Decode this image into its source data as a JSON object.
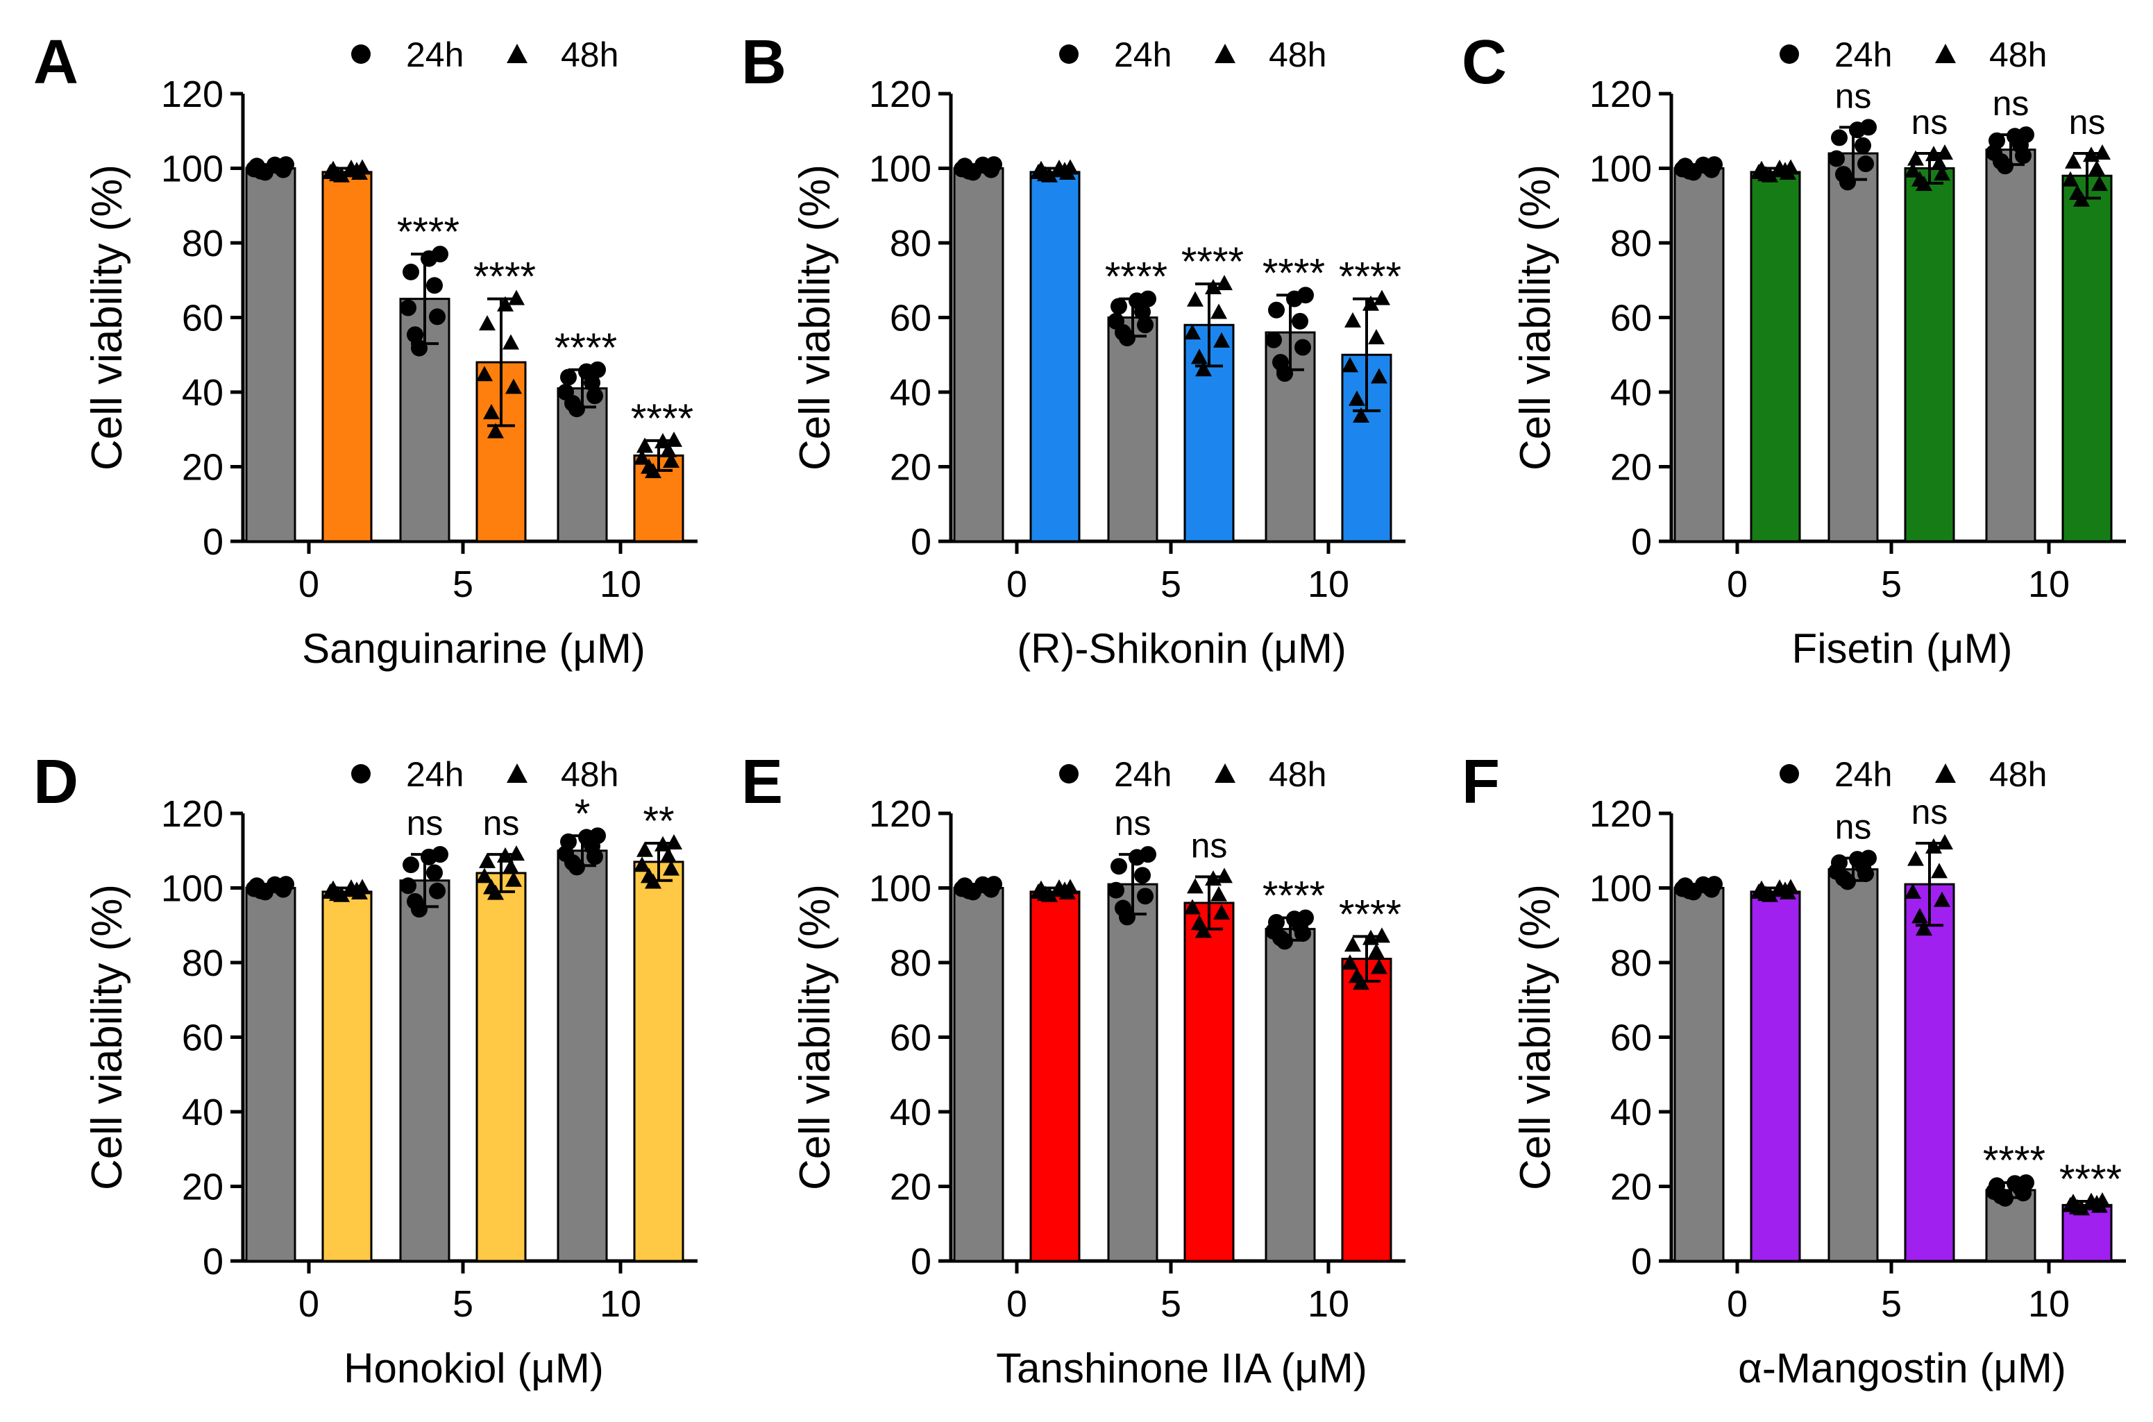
{
  "legend": {
    "series": [
      {
        "label": "24h",
        "marker": "circle"
      },
      {
        "label": "48h",
        "marker": "triangle"
      }
    ]
  },
  "colors": {
    "ctrl": "#808080",
    "sanguinarine": "#FF7F0E",
    "shikonin": "#1C86EE",
    "fisetin": "#167D16",
    "honokiol": "#FFC845",
    "tanshinone": "#FF0000",
    "mangostin": "#A020F0"
  },
  "chart_data": [
    {
      "panel": "A",
      "type": "bar",
      "color_key": "sanguinarine",
      "categories": [
        "0",
        "5",
        "10"
      ],
      "xlabel": "Sanguinarine (μM)",
      "ylabel": "Cell viability (%)",
      "ylim": [
        0,
        120
      ],
      "yticks": [
        "0",
        "20",
        "40",
        "60",
        "80",
        "100",
        "120"
      ],
      "series": [
        {
          "name": "24h",
          "values": [
            100,
            65,
            41
          ],
          "errors": [
            1,
            12,
            5
          ],
          "sig": [
            "",
            "****",
            "****"
          ]
        },
        {
          "name": "48h",
          "values": [
            99,
            48,
            23
          ],
          "errors": [
            1,
            17,
            4
          ],
          "sig": [
            "",
            "****",
            "****"
          ]
        }
      ]
    },
    {
      "panel": "B",
      "type": "bar",
      "color_key": "shikonin",
      "categories": [
        "0",
        "5",
        "10"
      ],
      "xlabel": "(R)-Shikonin (μM)",
      "ylabel": "Cell viability (%)",
      "ylim": [
        0,
        120
      ],
      "yticks": [
        "0",
        "20",
        "40",
        "60",
        "80",
        "100",
        "120"
      ],
      "series": [
        {
          "name": "24h",
          "values": [
            100,
            60,
            56
          ],
          "errors": [
            1,
            5,
            10
          ],
          "sig": [
            "",
            "****",
            "****"
          ]
        },
        {
          "name": "48h",
          "values": [
            99,
            58,
            50
          ],
          "errors": [
            1,
            11,
            15
          ],
          "sig": [
            "",
            "****",
            "****"
          ]
        }
      ]
    },
    {
      "panel": "C",
      "type": "bar",
      "color_key": "fisetin",
      "categories": [
        "0",
        "5",
        "10"
      ],
      "xlabel": "Fisetin (μM)",
      "ylabel": "Cell viability (%)",
      "ylim": [
        0,
        120
      ],
      "yticks": [
        "0",
        "20",
        "40",
        "60",
        "80",
        "100",
        "120"
      ],
      "series": [
        {
          "name": "24h",
          "values": [
            100,
            104,
            105
          ],
          "errors": [
            1,
            7,
            4
          ],
          "sig": [
            "",
            "ns",
            "ns"
          ]
        },
        {
          "name": "48h",
          "values": [
            99,
            100,
            98
          ],
          "errors": [
            1,
            4,
            6
          ],
          "sig": [
            "",
            "ns",
            "ns"
          ]
        }
      ]
    },
    {
      "panel": "D",
      "type": "bar",
      "color_key": "honokiol",
      "categories": [
        "0",
        "5",
        "10"
      ],
      "xlabel": "Honokiol (μM)",
      "ylabel": "Cell viability (%)",
      "ylim": [
        0,
        120
      ],
      "yticks": [
        "0",
        "20",
        "40",
        "60",
        "80",
        "100",
        "120"
      ],
      "series": [
        {
          "name": "24h",
          "values": [
            100,
            102,
            110
          ],
          "errors": [
            1,
            7,
            4
          ],
          "sig": [
            "",
            "ns",
            "*"
          ]
        },
        {
          "name": "48h",
          "values": [
            99,
            104,
            107
          ],
          "errors": [
            1,
            5,
            5
          ],
          "sig": [
            "",
            "ns",
            "**"
          ]
        }
      ]
    },
    {
      "panel": "E",
      "type": "bar",
      "color_key": "tanshinone",
      "categories": [
        "0",
        "5",
        "10"
      ],
      "xlabel": "Tanshinone IIA (μM)",
      "ylabel": "Cell viability (%)",
      "ylim": [
        0,
        120
      ],
      "yticks": [
        "0",
        "20",
        "40",
        "60",
        "80",
        "100",
        "120"
      ],
      "series": [
        {
          "name": "24h",
          "values": [
            100,
            101,
            89
          ],
          "errors": [
            1,
            8,
            3
          ],
          "sig": [
            "",
            "ns",
            "****"
          ]
        },
        {
          "name": "48h",
          "values": [
            99,
            96,
            81
          ],
          "errors": [
            1,
            7,
            6
          ],
          "sig": [
            "",
            "ns",
            "****"
          ]
        }
      ]
    },
    {
      "panel": "F",
      "type": "bar",
      "color_key": "mangostin",
      "categories": [
        "0",
        "5",
        "10"
      ],
      "xlabel": "α-Mangostin (μM)",
      "ylabel": "Cell viability (%)",
      "ylim": [
        0,
        120
      ],
      "yticks": [
        "0",
        "20",
        "40",
        "60",
        "80",
        "100",
        "120"
      ],
      "series": [
        {
          "name": "24h",
          "values": [
            100,
            105,
            19
          ],
          "errors": [
            1,
            3,
            2
          ],
          "sig": [
            "",
            "ns",
            "****"
          ]
        },
        {
          "name": "48h",
          "values": [
            99,
            101,
            15
          ],
          "errors": [
            1,
            11,
            1
          ],
          "sig": [
            "",
            "ns",
            "****"
          ]
        }
      ]
    }
  ]
}
